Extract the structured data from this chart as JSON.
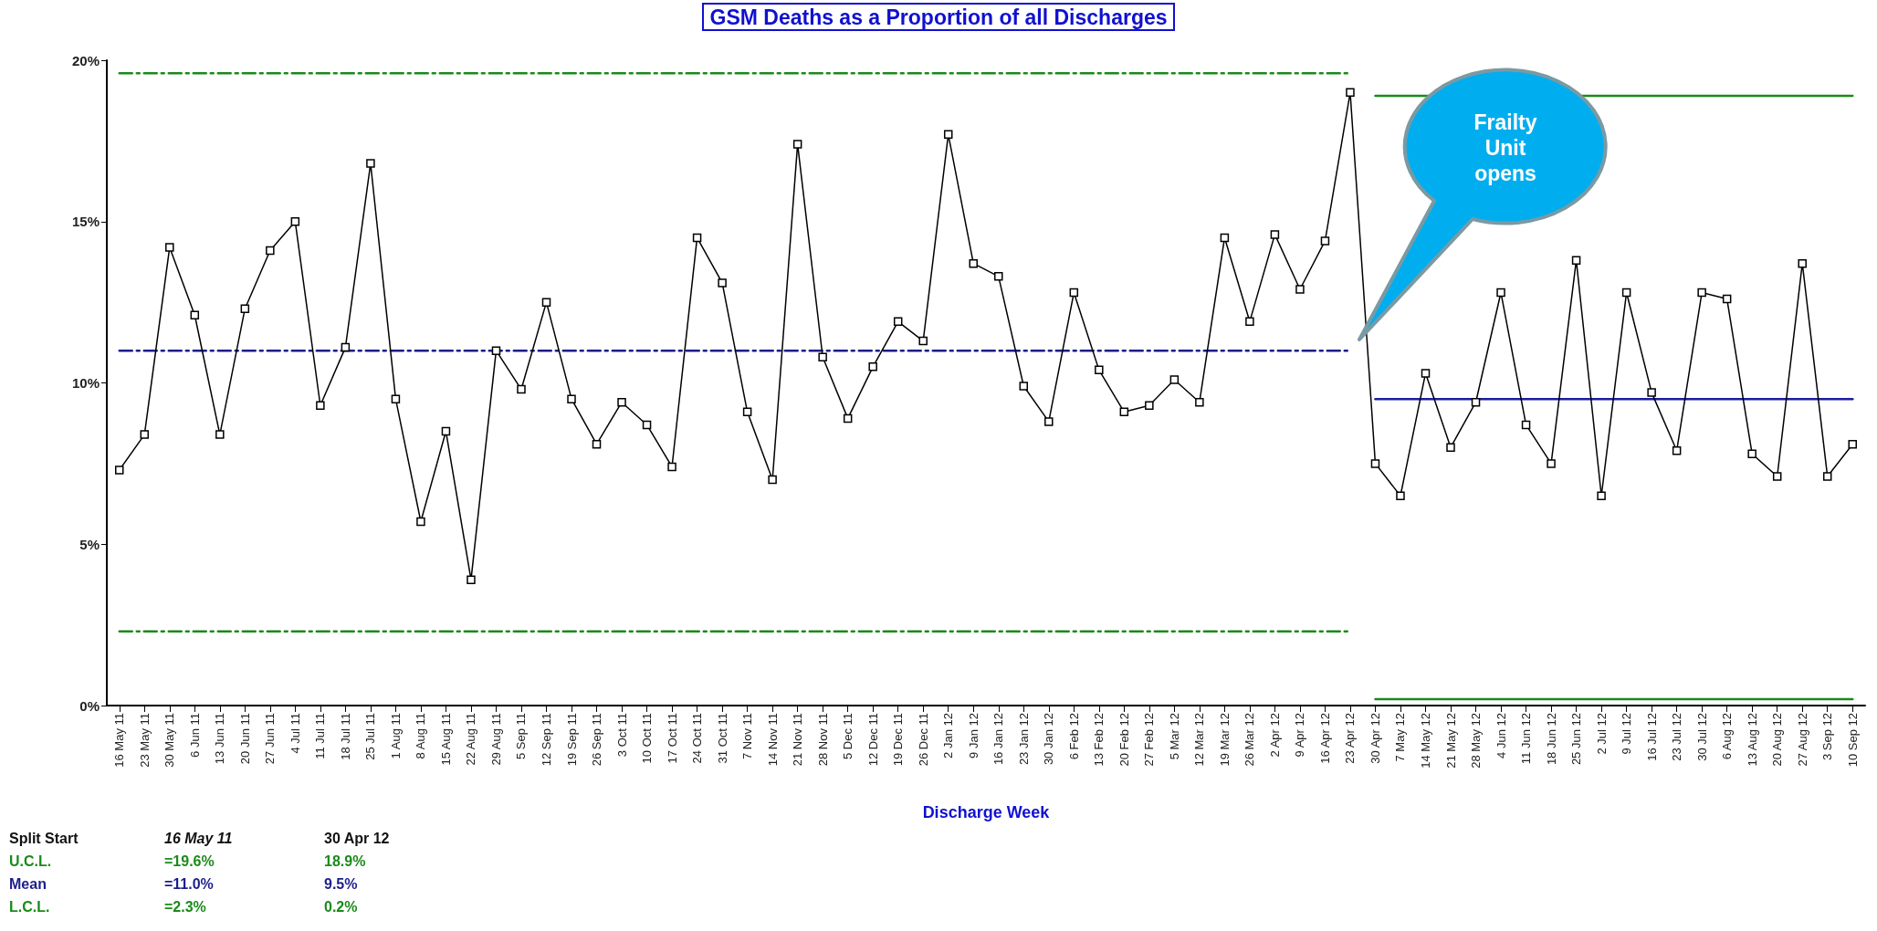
{
  "chart_data": {
    "type": "line",
    "title": "GSM Deaths as a Proportion of all Discharges",
    "xlabel": "Discharge Week",
    "categories": [
      "16 May 11",
      "23 May 11",
      "30 May 11",
      "6 Jun 11",
      "13 Jun 11",
      "20 Jun 11",
      "27 Jun 11",
      "4 Jul 11",
      "11 Jul 11",
      "18 Jul 11",
      "25 Jul 11",
      "1 Aug 11",
      "8 Aug 11",
      "15 Aug 11",
      "22 Aug 11",
      "29 Aug 11",
      "5 Sep 11",
      "12 Sep 11",
      "19 Sep 11",
      "26 Sep 11",
      "3 Oct 11",
      "10 Oct 11",
      "17 Oct 11",
      "24 Oct 11",
      "31 Oct 11",
      "7 Nov 11",
      "14 Nov 11",
      "21 Nov 11",
      "28 Nov 11",
      "5 Dec 11",
      "12 Dec 11",
      "19 Dec 11",
      "26 Dec 11",
      "2 Jan 12",
      "9 Jan 12",
      "16 Jan 12",
      "23 Jan 12",
      "30 Jan 12",
      "6 Feb 12",
      "13 Feb 12",
      "20 Feb 12",
      "27 Feb 12",
      "5 Mar 12",
      "12 Mar 12",
      "19 Mar 12",
      "26 Mar 12",
      "2 Apr 12",
      "9 Apr 12",
      "16 Apr 12",
      "23 Apr 12",
      "30 Apr 12",
      "7 May 12",
      "14 May 12",
      "21 May 12",
      "28 May 12",
      "4 Jun 12",
      "11 Jun 12",
      "18 Jun 12",
      "25 Jun 12",
      "2 Jul 12",
      "9 Jul 12",
      "16 Jul 12",
      "23 Jul 12",
      "30 Jul 12",
      "6 Aug 12",
      "13 Aug 12",
      "20 Aug 12",
      "27 Aug 12",
      "3 Sep 12",
      "10 Sep 12"
    ],
    "series": [
      {
        "color": "#000000",
        "marker": "square",
        "line_style": "solid",
        "values": [
          7.3,
          8.4,
          14.2,
          12.1,
          8.4,
          12.3,
          14.1,
          15.0,
          9.3,
          11.1,
          16.8,
          9.5,
          5.7,
          8.5,
          3.9,
          11.0,
          9.8,
          12.5,
          9.5,
          8.1,
          9.4,
          8.7,
          7.4,
          14.5,
          13.1,
          9.1,
          7.0,
          17.4,
          10.8,
          8.9,
          10.5,
          11.9,
          11.3,
          17.7,
          13.7,
          13.3,
          9.9,
          8.8,
          12.8,
          10.4,
          9.1,
          9.3,
          10.1,
          9.4,
          14.5,
          11.9,
          14.6,
          12.9,
          14.4,
          19.0,
          7.5,
          6.5,
          10.3,
          8.0,
          9.4,
          12.8,
          8.7,
          7.5,
          13.8,
          6.5,
          12.8,
          9.7,
          7.9,
          12.8,
          12.6,
          7.8,
          7.1,
          13.7,
          7.1,
          8.1
        ]
      },
      {
        "color": "#1a8a1a",
        "marker": "none",
        "line_style": "dashed",
        "x": [
          "16 May 11",
          "23 Apr 12"
        ],
        "values": [
          19.6,
          19.6
        ]
      },
      {
        "color": "#1c1c8c",
        "marker": "none",
        "line_style": "dashed",
        "x": [
          "16 May 11",
          "23 Apr 12"
        ],
        "values": [
          11.0,
          11.0
        ]
      },
      {
        "color": "#1a8a1a",
        "marker": "none",
        "line_style": "dashed",
        "x": [
          "16 May 11",
          "23 Apr 12"
        ],
        "values": [
          2.3,
          2.3
        ]
      },
      {
        "color": "#1a8a1a",
        "marker": "none",
        "line_style": "solid",
        "x": [
          "30 Apr 12",
          "10 Sep 12"
        ],
        "values": [
          18.9,
          18.9
        ]
      },
      {
        "color": "#1c1ca0",
        "marker": "none",
        "line_style": "solid",
        "x": [
          "30 Apr 12",
          "10 Sep 12"
        ],
        "values": [
          9.5,
          9.5
        ]
      },
      {
        "color": "#1a8a1a",
        "marker": "none",
        "line_style": "solid",
        "x": [
          "30 Apr 12",
          "10 Sep 12"
        ],
        "values": [
          0.2,
          0.2
        ]
      }
    ],
    "ylim": [
      0,
      20
    ],
    "yticks": [
      {
        "value": 0,
        "label": "0%"
      },
      {
        "value": 5,
        "label": "5%"
      },
      {
        "value": 10,
        "label": "10%"
      },
      {
        "value": 15,
        "label": "15%"
      },
      {
        "value": 20,
        "label": "20%"
      }
    ],
    "grid": false,
    "annotations": [
      "Frailty Unit opens",
      "Split Start",
      "16 May 11",
      "30 Apr 12",
      "U.C.L.",
      "=19.6%",
      "18.9%",
      "Mean",
      "=11.0%",
      "9.5%",
      "L.C.L.",
      "=2.3%",
      "0.2%"
    ]
  }
}
